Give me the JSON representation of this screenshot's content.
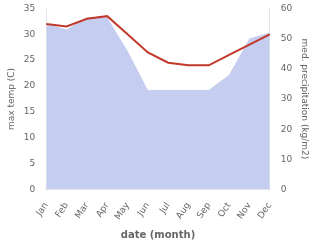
{
  "chart_data": {
    "type": "line",
    "xlabel": "date (month)",
    "ylabel": "max temp (C)",
    "y2label": "med. precipitation (kg/m2)",
    "categories": [
      "Jan",
      "Feb",
      "Mar",
      "Apr",
      "May",
      "Jun",
      "Jul",
      "Aug",
      "Sep",
      "Oct",
      "Nov",
      "Dec"
    ],
    "series": [
      {
        "type": "area",
        "axis": "y2",
        "color": "#c5cef0",
        "values": [
          55,
          53,
          57,
          57,
          46,
          33,
          33,
          33,
          33,
          38,
          50,
          52
        ]
      },
      {
        "type": "line",
        "color": "#c0392b",
        "values": [
          32,
          31.5,
          33,
          33.5,
          30,
          26.5,
          24.5,
          24,
          24,
          26,
          28,
          30
        ]
      }
    ],
    "ylim": [
      0,
      35
    ],
    "yticks": [
      0,
      5,
      10,
      15,
      20,
      25,
      30,
      35
    ],
    "y2lim": [
      0,
      60
    ],
    "y2ticks": [
      0,
      10,
      20,
      30,
      40,
      50,
      60
    ],
    "grid": false
  }
}
